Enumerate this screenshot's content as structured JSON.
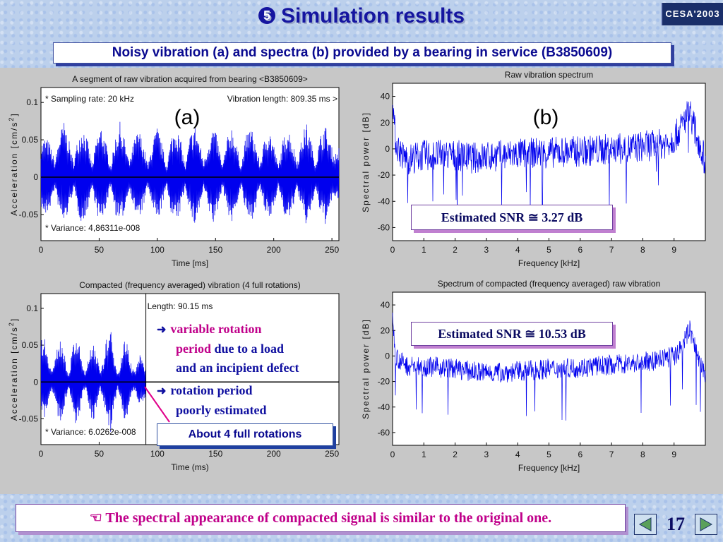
{
  "slide": {
    "number_symbol": "5",
    "title": "Simulation results",
    "logo": "CESA'2003",
    "subtitle": "Noisy vibration (a) and spectra (b) provided by a bearing in service (B3850609)",
    "footer_icon": "pointing-hand-icon",
    "footer": "The spectral appearance of compacted signal is similar to the original one.",
    "page_number": "17",
    "prev_icon": "triangle-left-icon",
    "next_icon": "triangle-right-icon"
  },
  "annotations": {
    "a_label": "(a)",
    "b_label": "(b)",
    "snr_top": "Estimated SNR ≅  3.27 dB",
    "snr_bottom": "Estimated SNR ≅  10.53 dB",
    "rotations_box": "About 4 full rotations",
    "arrow_icon": "right-arrow-icon",
    "bullet1_mag1": "variable rotation",
    "bullet1_mag2": "period",
    "bullet1_blue1": " due to a load",
    "bullet1_blue2": "and an incipient defect",
    "bullet2_line1": "rotation period",
    "bullet2_line2": "poorly estimated"
  },
  "chart_data": [
    {
      "id": "raw-vibration",
      "type": "line",
      "title": "A segment of raw vibration acquired from bearing <B3850609>",
      "xlabel": "Time [ms]",
      "ylabel": "Acceleration [cm/s",
      "ylabel_sup": "2",
      "xlim": [
        0,
        256
      ],
      "ylim": [
        -0.085,
        0.12
      ],
      "xticks": [
        "0",
        "50",
        "100",
        "150",
        "200",
        "250"
      ],
      "yticks": [
        "-0.05",
        "0",
        "0.05",
        "0.1"
      ],
      "reference_line": 0,
      "texts": {
        "sampling": "* Sampling rate: 20 kHz",
        "length": "Vibration length: 809.35 ms >",
        "variance": "* Variance: 4,86311e-008"
      },
      "series": [
        {
          "color": "#0000ee",
          "envelope": {
            "x": [
              0,
              4,
              8,
              12,
              16,
              20,
              24,
              28,
              32,
              36,
              40,
              44,
              48,
              52,
              56,
              60,
              64,
              68,
              72,
              76,
              80,
              84,
              88,
              92,
              96,
              100,
              104,
              108,
              112,
              116,
              120,
              124,
              128,
              132,
              136,
              140,
              144,
              148,
              152,
              156,
              160,
              164,
              168,
              172,
              176,
              180,
              184,
              188,
              192,
              196,
              200,
              204,
              208,
              212,
              216,
              220,
              224,
              228,
              232,
              236,
              240,
              244,
              248,
              252,
              256
            ],
            "upper": [
              0.045,
              0.055,
              0.045,
              0.02,
              0.06,
              0.075,
              0.05,
              0.02,
              0.055,
              0.07,
              0.05,
              0.015,
              0.055,
              0.07,
              0.045,
              0.015,
              0.055,
              0.075,
              0.05,
              0.02,
              0.05,
              0.065,
              0.045,
              0.015,
              0.05,
              0.068,
              0.045,
              0.015,
              0.055,
              0.07,
              0.05,
              0.015,
              0.055,
              0.072,
              0.05,
              0.02,
              0.05,
              0.07,
              0.05,
              0.015,
              0.052,
              0.07,
              0.045,
              0.015,
              0.055,
              0.07,
              0.05,
              0.018,
              0.05,
              0.068,
              0.045,
              0.015,
              0.05,
              0.07,
              0.05,
              0.02,
              0.052,
              0.075,
              0.05,
              0.02,
              0.055,
              0.072,
              0.05,
              0.03,
              0.04
            ],
            "lower": [
              -0.04,
              -0.055,
              -0.04,
              -0.015,
              -0.05,
              -0.065,
              -0.045,
              -0.015,
              -0.05,
              -0.065,
              -0.045,
              -0.012,
              -0.05,
              -0.065,
              -0.04,
              -0.012,
              -0.05,
              -0.065,
              -0.045,
              -0.015,
              -0.045,
              -0.06,
              -0.04,
              -0.012,
              -0.045,
              -0.062,
              -0.04,
              -0.012,
              -0.05,
              -0.065,
              -0.045,
              -0.012,
              -0.05,
              -0.066,
              -0.045,
              -0.015,
              -0.045,
              -0.064,
              -0.045,
              -0.012,
              -0.046,
              -0.064,
              -0.04,
              -0.012,
              -0.05,
              -0.064,
              -0.045,
              -0.014,
              -0.045,
              -0.062,
              -0.04,
              -0.012,
              -0.045,
              -0.064,
              -0.045,
              -0.015,
              -0.046,
              -0.066,
              -0.045,
              -0.015,
              -0.05,
              -0.064,
              -0.045,
              -0.025,
              -0.035
            ]
          }
        }
      ]
    },
    {
      "id": "raw-spectrum",
      "type": "line",
      "title": "Raw vibration spectrum",
      "xlabel": "Frequency [kHz]",
      "ylabel": "Spectral power [dB]",
      "xlim": [
        0,
        10
      ],
      "ylim": [
        -70,
        50
      ],
      "xticks": [
        "0",
        "1",
        "2",
        "3",
        "4",
        "5",
        "6",
        "7",
        "8",
        "9"
      ],
      "yticks": [
        "-60",
        "-40",
        "-20",
        "0",
        "20",
        "40"
      ],
      "series": [
        {
          "color": "#0000ee",
          "x": [
            0,
            0.05,
            0.1,
            0.3,
            0.5,
            0.8,
            1,
            1.5,
            2,
            2.5,
            3,
            3.5,
            4,
            4.5,
            5,
            5.5,
            6,
            6.5,
            7,
            7.5,
            8,
            8.5,
            8.8,
            9,
            9.2,
            9.4,
            9.5,
            9.6,
            9.7,
            9.8,
            10
          ],
          "y": [
            45,
            20,
            5,
            -5,
            -8,
            -6,
            -5,
            -5,
            -5,
            -7,
            -6,
            -5,
            -4,
            -3,
            -3,
            -2,
            -2,
            -1,
            0,
            0,
            2,
            3,
            5,
            8,
            15,
            25,
            30,
            20,
            12,
            5,
            -10
          ],
          "noise_range": 12
        }
      ]
    },
    {
      "id": "compacted-vibration",
      "type": "line",
      "title": "Compacted (frequency averaged) vibration (4 full rotations)",
      "xlabel": "Time (ms)",
      "ylabel": "Acceleration [cm/s",
      "ylabel_sup": "2",
      "xlim": [
        0,
        256
      ],
      "ylim": [
        -0.085,
        0.12
      ],
      "xticks": [
        "0",
        "50",
        "100",
        "150",
        "200",
        "250"
      ],
      "yticks": [
        "-0.05",
        "0",
        "0.05",
        "0.1"
      ],
      "reference_line": 0,
      "boundary_x": 90.15,
      "texts": {
        "length": "Length: 90.15 ms",
        "variance": "* Variance: 6.0262e-008"
      },
      "series": [
        {
          "color": "#0000ee",
          "envelope": {
            "x": [
              0,
              3,
              6,
              9,
              12,
              15,
              18,
              21,
              24,
              27,
              30,
              33,
              36,
              39,
              42,
              45,
              48,
              51,
              54,
              57,
              60,
              63,
              66,
              69,
              72,
              75,
              78,
              81,
              84,
              87,
              90
            ],
            "upper": [
              0.06,
              0.065,
              0.04,
              0.015,
              0.03,
              0.055,
              0.06,
              0.03,
              0.01,
              0.045,
              0.065,
              0.05,
              0.02,
              0.015,
              0.045,
              0.06,
              0.04,
              0.01,
              0.035,
              0.065,
              0.07,
              0.04,
              0.01,
              0.035,
              0.06,
              0.05,
              0.02,
              0.015,
              0.04,
              0.03,
              0.02
            ],
            "lower": [
              -0.04,
              -0.05,
              -0.03,
              -0.01,
              -0.025,
              -0.05,
              -0.055,
              -0.025,
              -0.008,
              -0.04,
              -0.065,
              -0.05,
              -0.015,
              -0.01,
              -0.04,
              -0.06,
              -0.035,
              -0.008,
              -0.03,
              -0.06,
              -0.07,
              -0.035,
              -0.008,
              -0.03,
              -0.055,
              -0.045,
              -0.015,
              -0.01,
              -0.035,
              -0.03,
              -0.02
            ]
          }
        }
      ]
    },
    {
      "id": "compacted-spectrum",
      "type": "line",
      "title": "Spectrum of compacted (frequency averaged) raw vibration",
      "xlabel": "Frequency [kHz]",
      "ylabel": "Spectral power [dB]",
      "xlim": [
        0,
        10
      ],
      "ylim": [
        -70,
        50
      ],
      "xticks": [
        "0",
        "1",
        "2",
        "3",
        "4",
        "5",
        "6",
        "7",
        "8",
        "9"
      ],
      "yticks": [
        "-60",
        "-40",
        "-20",
        "0",
        "20",
        "40"
      ],
      "series": [
        {
          "color": "#0000ee",
          "x": [
            0,
            0.05,
            0.1,
            0.3,
            0.5,
            1,
            1.5,
            2,
            2.5,
            3,
            3.5,
            4,
            4.5,
            5,
            5.5,
            6,
            6.5,
            7,
            7.5,
            8,
            8.5,
            9,
            9.2,
            9.4,
            9.5,
            9.6,
            9.7,
            9.8,
            10
          ],
          "y": [
            30,
            15,
            0,
            -5,
            -8,
            -8,
            -9,
            -10,
            -12,
            -13,
            -13,
            -12,
            -11,
            -10,
            -10,
            -9,
            -8,
            -7,
            -6,
            -5,
            -3,
            0,
            5,
            15,
            22,
            12,
            5,
            -3,
            -15
          ],
          "noise_range": 8
        }
      ]
    }
  ]
}
